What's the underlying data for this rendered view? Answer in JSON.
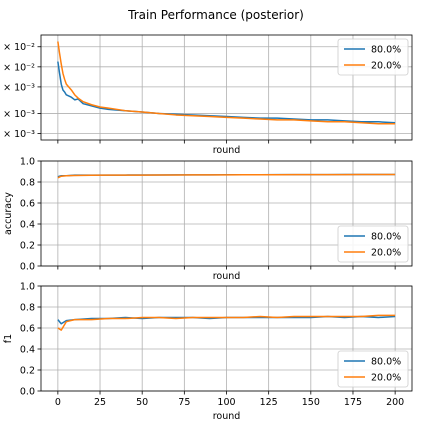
{
  "figure": {
    "title": "Train Performance (posterior)"
  },
  "chart_data": [
    {
      "type": "line",
      "xlabel": "round",
      "ylabel": "",
      "yscale": "log",
      "xlim": [
        -10,
        210
      ],
      "ylim": [
        0.0008,
        0.03
      ],
      "yticks": [
        0.001,
        0.002,
        0.005,
        0.01,
        0.02
      ],
      "yticklabels": [
        "× 10⁻³",
        "× 10⁻³",
        "× 10⁻³",
        "× 10⁻²",
        "× 10⁻²"
      ],
      "grid": true,
      "legend": "top-right",
      "series": [
        {
          "name": "80.0%",
          "color": "#1f77b4",
          "x": [
            0,
            1,
            2,
            3,
            4,
            5,
            8,
            10,
            12,
            15,
            20,
            25,
            30,
            40,
            50,
            60,
            70,
            80,
            90,
            100,
            110,
            120,
            130,
            140,
            150,
            160,
            170,
            180,
            190,
            200
          ],
          "y": [
            0.012,
            0.008,
            0.0055,
            0.0045,
            0.0042,
            0.0038,
            0.0035,
            0.0032,
            0.0033,
            0.0028,
            0.0026,
            0.0024,
            0.0023,
            0.0022,
            0.0021,
            0.002,
            0.00195,
            0.0019,
            0.00185,
            0.0018,
            0.00175,
            0.0017,
            0.0017,
            0.00165,
            0.0016,
            0.0016,
            0.00155,
            0.0015,
            0.0015,
            0.00145
          ]
        },
        {
          "name": "20.0%",
          "color": "#ff7f0e",
          "x": [
            0,
            1,
            2,
            3,
            4,
            5,
            8,
            10,
            12,
            15,
            20,
            25,
            30,
            40,
            50,
            60,
            70,
            80,
            90,
            100,
            110,
            120,
            130,
            140,
            150,
            160,
            170,
            180,
            190,
            200
          ],
          "y": [
            0.024,
            0.016,
            0.011,
            0.008,
            0.0065,
            0.0055,
            0.0045,
            0.0038,
            0.0034,
            0.003,
            0.0027,
            0.0025,
            0.0024,
            0.0022,
            0.0021,
            0.002,
            0.0019,
            0.00185,
            0.0018,
            0.00175,
            0.0017,
            0.00165,
            0.0016,
            0.0016,
            0.00155,
            0.0015,
            0.0015,
            0.00145,
            0.0014,
            0.0014
          ]
        }
      ]
    },
    {
      "type": "line",
      "xlabel": "round",
      "ylabel": "accuracy",
      "xlim": [
        -10,
        210
      ],
      "ylim": [
        0.0,
        1.0
      ],
      "yticks": [
        0.0,
        0.2,
        0.4,
        0.6,
        0.8,
        1.0
      ],
      "yticklabels": [
        "0.0",
        "0.2",
        "0.4",
        "0.6",
        "0.8",
        "1.0"
      ],
      "grid": true,
      "legend": "bottom-right",
      "series": [
        {
          "name": "80.0%",
          "color": "#1f77b4",
          "x": [
            0,
            2,
            5,
            10,
            20,
            30,
            40,
            50,
            60,
            70,
            80,
            90,
            100,
            110,
            120,
            130,
            140,
            150,
            160,
            170,
            180,
            190,
            200
          ],
          "y": [
            0.85,
            0.86,
            0.86,
            0.865,
            0.865,
            0.866,
            0.866,
            0.867,
            0.867,
            0.868,
            0.868,
            0.868,
            0.869,
            0.869,
            0.869,
            0.87,
            0.87,
            0.87,
            0.87,
            0.871,
            0.871,
            0.871,
            0.871
          ]
        },
        {
          "name": "20.0%",
          "color": "#ff7f0e",
          "x": [
            0,
            2,
            5,
            10,
            20,
            30,
            40,
            50,
            60,
            70,
            80,
            90,
            100,
            110,
            120,
            130,
            140,
            150,
            160,
            170,
            180,
            190,
            200
          ],
          "y": [
            0.84,
            0.855,
            0.86,
            0.862,
            0.864,
            0.865,
            0.866,
            0.866,
            0.867,
            0.867,
            0.868,
            0.868,
            0.868,
            0.869,
            0.869,
            0.869,
            0.87,
            0.87,
            0.87,
            0.87,
            0.871,
            0.871,
            0.871
          ]
        }
      ]
    },
    {
      "type": "line",
      "xlabel": "round",
      "ylabel": "f1",
      "xlim": [
        -10,
        210
      ],
      "ylim": [
        0.0,
        1.0
      ],
      "xticks": [
        0,
        25,
        50,
        75,
        100,
        125,
        150,
        175,
        200
      ],
      "xticklabels": [
        "0",
        "25",
        "50",
        "75",
        "100",
        "125",
        "150",
        "175",
        "200"
      ],
      "yticks": [
        0.0,
        0.2,
        0.4,
        0.6,
        0.8,
        1.0
      ],
      "yticklabels": [
        "0.0",
        "0.2",
        "0.4",
        "0.6",
        "0.8",
        "1.0"
      ],
      "grid": true,
      "legend": "bottom-right",
      "series": [
        {
          "name": "80.0%",
          "color": "#1f77b4",
          "x": [
            0,
            2,
            5,
            10,
            20,
            30,
            40,
            50,
            60,
            70,
            80,
            90,
            100,
            110,
            120,
            130,
            140,
            150,
            160,
            170,
            180,
            190,
            200
          ],
          "y": [
            0.68,
            0.64,
            0.67,
            0.68,
            0.69,
            0.69,
            0.7,
            0.69,
            0.7,
            0.7,
            0.7,
            0.69,
            0.7,
            0.7,
            0.7,
            0.7,
            0.7,
            0.7,
            0.71,
            0.7,
            0.71,
            0.7,
            0.71
          ]
        },
        {
          "name": "20.0%",
          "color": "#ff7f0e",
          "x": [
            0,
            2,
            5,
            10,
            20,
            30,
            40,
            50,
            60,
            70,
            80,
            90,
            100,
            110,
            120,
            130,
            140,
            150,
            160,
            170,
            180,
            190,
            200
          ],
          "y": [
            0.6,
            0.58,
            0.66,
            0.68,
            0.68,
            0.69,
            0.69,
            0.7,
            0.7,
            0.69,
            0.7,
            0.7,
            0.7,
            0.7,
            0.71,
            0.7,
            0.71,
            0.71,
            0.71,
            0.71,
            0.71,
            0.72,
            0.72
          ]
        }
      ]
    }
  ]
}
